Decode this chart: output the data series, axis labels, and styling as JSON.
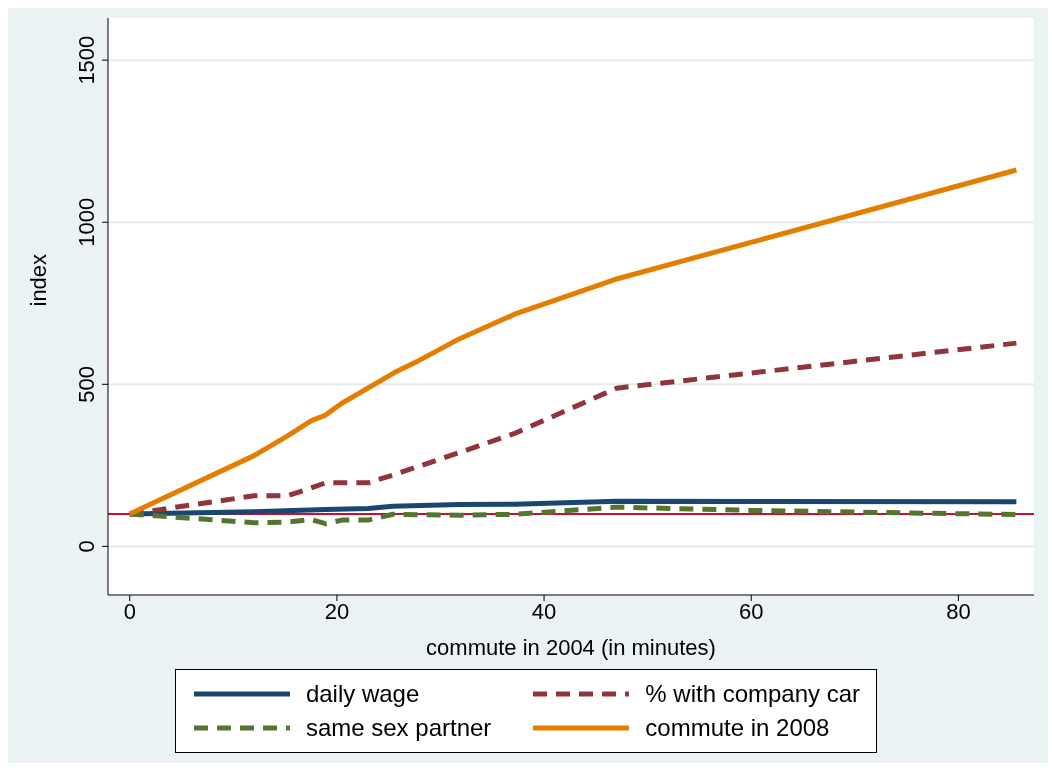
{
  "chart_data": {
    "type": "line",
    "xlabel": "commute in 2004 (in minutes)",
    "ylabel": "index",
    "xlim": [
      -2.1,
      87.3
    ],
    "xticks": [
      0,
      20,
      40,
      60,
      80
    ],
    "ylim": [
      -150,
      1630
    ],
    "yticks": [
      0,
      500,
      1000,
      1500
    ],
    "grid": "y",
    "legend": "bottom",
    "marker": "none",
    "ref_lines": [
      {
        "axis": "y",
        "value": 100,
        "color": "#c8102e"
      }
    ],
    "series": [
      {
        "name": "daily wage",
        "color": "#1a476f",
        "line_style": "solid",
        "x": [
          0,
          12,
          18.9,
          23,
          25.4,
          31.8,
          37.2,
          47,
          85.6
        ],
        "values": [
          100,
          107,
          114,
          117,
          124,
          129,
          130,
          139,
          138
        ]
      },
      {
        "name": "% with company car",
        "color": "#90353b",
        "line_style": "dashed",
        "x": [
          0,
          12,
          15.2,
          17.5,
          18.9,
          23,
          25.4,
          31.8,
          37.2,
          47,
          85.6
        ],
        "values": [
          100,
          156,
          156,
          180,
          196,
          196,
          220,
          289,
          349,
          488,
          627
        ]
      },
      {
        "name": "same sex partner",
        "color": "#55752f",
        "line_style": "dashed",
        "x": [
          0,
          12,
          15.2,
          17.5,
          18.9,
          20.5,
          23,
          25.4,
          31.8,
          37.2,
          47,
          60,
          85.6
        ],
        "values": [
          100,
          73,
          75,
          83,
          70,
          81,
          81,
          99,
          96,
          99,
          121,
          111,
          98
        ]
      },
      {
        "name": "commute in 2008",
        "color": "#e37e00",
        "line_style": "solid",
        "x": [
          0,
          12,
          15.2,
          17.5,
          18.9,
          20.4,
          25.6,
          27.9,
          31.8,
          37.3,
          46.9,
          85.6
        ],
        "values": [
          100,
          280,
          340,
          387,
          405,
          440,
          537,
          573,
          640,
          718,
          824,
          1161
        ]
      }
    ]
  }
}
